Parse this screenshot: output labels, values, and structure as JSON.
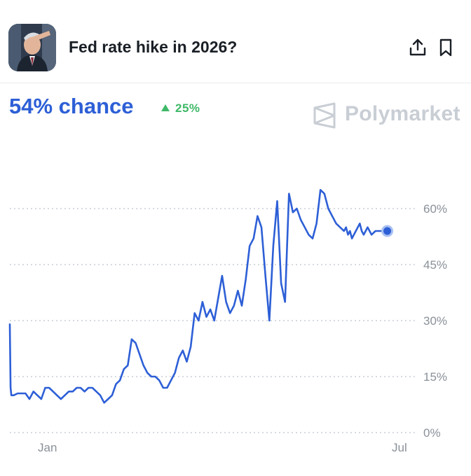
{
  "header": {
    "title": "Fed rate hike in 2026?"
  },
  "headline": {
    "chance": "54% chance",
    "change": "25%"
  },
  "brand": {
    "name": "Polymarket"
  },
  "colors": {
    "line": "#2d5fd6",
    "up": "#3fb868",
    "brand": "#c9ced5"
  },
  "icons": [
    "share-icon",
    "bookmark-icon",
    "polymarket-logo-icon"
  ],
  "chart_data": {
    "type": "line",
    "title": "",
    "xlabel": "",
    "ylabel": "",
    "ylim": [
      0,
      70
    ],
    "yticks": [
      0,
      15,
      30,
      45,
      60
    ],
    "ytick_labels": [
      "0%",
      "15%",
      "30%",
      "45%",
      "60%"
    ],
    "xtick_labels": [
      "Jan",
      "Jul"
    ],
    "xlim": [
      0,
      100
    ],
    "xtick_positions": [
      10,
      96
    ],
    "grid": "dotted horizontal",
    "current": 54,
    "series": [
      {
        "x": [
          0,
          0.2,
          0.4,
          1,
          2,
          3,
          4,
          5,
          6,
          7,
          8,
          9,
          10,
          11,
          12,
          13,
          14,
          15,
          16,
          17,
          18,
          19,
          20,
          21,
          22,
          23,
          24,
          25,
          26,
          27,
          28,
          29,
          30,
          31,
          32,
          33,
          34,
          35,
          36,
          37,
          38,
          39,
          40,
          41,
          42,
          43,
          44,
          45,
          46,
          47,
          48,
          49,
          50,
          51,
          52,
          53,
          54,
          55,
          56,
          57,
          58,
          59,
          60,
          61,
          62,
          63,
          64,
          65,
          66,
          67,
          68,
          69,
          70,
          71,
          72,
          73,
          74,
          75,
          76,
          77,
          78,
          79,
          80,
          81,
          82,
          83,
          84,
          85,
          85.5,
          86,
          86.5,
          87,
          87.5,
          88,
          88.5,
          89,
          89.5,
          90,
          90.5,
          91,
          91.5,
          92,
          93,
          94,
          95,
          96
        ],
        "values": [
          29,
          12,
          10,
          10,
          10.5,
          10.5,
          10.5,
          9,
          11,
          10,
          9,
          12,
          12,
          11,
          10,
          9,
          10,
          11,
          11,
          12,
          12,
          11,
          12,
          12,
          11,
          10,
          8,
          9,
          10,
          13,
          14,
          17,
          18,
          25,
          24,
          21,
          18,
          16,
          15,
          15,
          14,
          12,
          12,
          14,
          16,
          20,
          22,
          19,
          23,
          32,
          30,
          35,
          31,
          33,
          30,
          36,
          42,
          35,
          32,
          34,
          38,
          34,
          41,
          50,
          52,
          58,
          55,
          42,
          30,
          50,
          62,
          40,
          35,
          64,
          59,
          60,
          57,
          55,
          53,
          52,
          56,
          65,
          64,
          60,
          58,
          56,
          55,
          54,
          55,
          53,
          54,
          52,
          53,
          54,
          55,
          56,
          54,
          53,
          54,
          55,
          54,
          53,
          54,
          54,
          54,
          54
        ]
      }
    ]
  }
}
